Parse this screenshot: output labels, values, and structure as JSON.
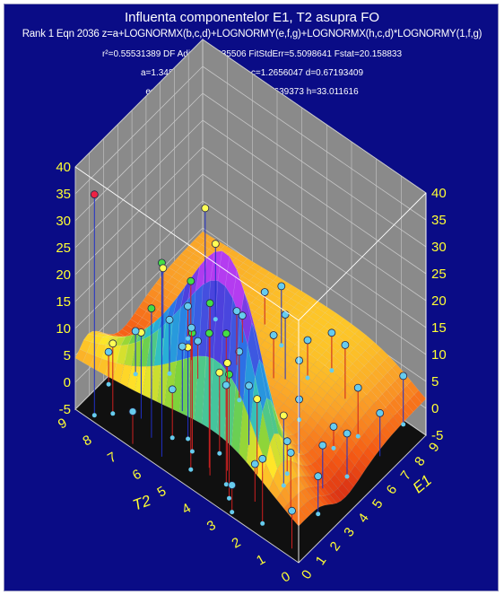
{
  "header": {
    "title": "Influenta componentelor E1, T2 asupra FO",
    "equation": "Rank 1  Eqn 2036  z=a+LOGNORMX(b,c,d)+LOGNORMY(e,f,g)+LOGNORMX(h,c,d)*LOGNORMY(1,f,g)",
    "stats_line1": "r²=0.55531389  DF Adj r²=0.5235506  FitStdErr=5.5098641  Fstat=20.158833",
    "stats_line2": "a=1.3483147 b=4.8975951 c=1.2656047 d=0.67193409",
    "stats_line3": "e=-3.304707 f=3.896985 g=0.29639373 h=33.011616"
  },
  "chart_data": {
    "type": "surface3d",
    "title": "Influenta componentelor E1, T2 asupra FO",
    "xlabel": "T2",
    "ylabel": "E1",
    "z_ticks_left": [
      "40",
      "35",
      "30",
      "25",
      "20",
      "15",
      "10",
      "5",
      "0",
      "-5"
    ],
    "z_ticks_right": [
      "40",
      "35",
      "30",
      "25",
      "20",
      "15",
      "10",
      "5",
      "0",
      "-5"
    ],
    "t2_ticks": [
      "9",
      "8",
      "7",
      "6",
      "5",
      "4",
      "3",
      "2",
      "1",
      "0"
    ],
    "e1_ticks": [
      "0",
      "1",
      "2",
      "3",
      "4",
      "5",
      "6",
      "7",
      "8",
      "9"
    ],
    "zlim": [
      -5,
      40
    ],
    "grid": true,
    "surface_model": {
      "a": 1.3483147,
      "b": 4.8975951,
      "c": 1.2656047,
      "d": 0.67193409,
      "e": -3.304707,
      "f": 3.896985,
      "g": 0.29639373,
      "h": 33.011616
    },
    "data_points": [
      {
        "e1": 0.3,
        "t2": 8.4,
        "z": 36
      },
      {
        "e1": 0.5,
        "t2": 5.8,
        "z": 31
      },
      {
        "e1": 0.8,
        "t2": 4.8,
        "z": 30
      },
      {
        "e1": 1.1,
        "t2": 4.2,
        "z": 27
      },
      {
        "e1": 1.2,
        "t2": 3.6,
        "z": 23
      },
      {
        "e1": 1.4,
        "t2": 4.4,
        "z": 20
      },
      {
        "e1": 1.6,
        "t2": 5.2,
        "z": 17
      },
      {
        "e1": 1.0,
        "t2": 6.5,
        "z": 19
      },
      {
        "e1": 0.7,
        "t2": 3.2,
        "z": 18
      },
      {
        "e1": 1.8,
        "t2": 3.9,
        "z": 15
      },
      {
        "e1": 2.0,
        "t2": 5.6,
        "z": 12
      },
      {
        "e1": 1.5,
        "t2": 7.2,
        "z": 11
      },
      {
        "e1": 2.3,
        "t2": 4.5,
        "z": 10
      },
      {
        "e1": 2.5,
        "t2": 3.1,
        "z": 9
      },
      {
        "e1": 0.9,
        "t2": 8.0,
        "z": 8
      },
      {
        "e1": 3.0,
        "t2": 6.4,
        "z": 7
      },
      {
        "e1": 2.8,
        "t2": 2.2,
        "z": 8
      },
      {
        "e1": 1.9,
        "t2": 1.4,
        "z": 6
      },
      {
        "e1": 0.6,
        "t2": 1.8,
        "z": 7
      },
      {
        "e1": 3.5,
        "t2": 4.0,
        "z": 6
      },
      {
        "e1": 4.2,
        "t2": 7.6,
        "z": 5
      },
      {
        "e1": 4.6,
        "t2": 2.6,
        "z": 5
      },
      {
        "e1": 5.1,
        "t2": 5.3,
        "z": 4
      },
      {
        "e1": 5.5,
        "t2": 8.6,
        "z": 8
      },
      {
        "e1": 6.0,
        "t2": 3.4,
        "z": 6
      },
      {
        "e1": 6.5,
        "t2": 6.2,
        "z": 5
      },
      {
        "e1": 7.0,
        "t2": 1.6,
        "z": 4
      },
      {
        "e1": 7.3,
        "t2": 4.7,
        "z": 7
      },
      {
        "e1": 7.8,
        "t2": 7.8,
        "z": 9
      },
      {
        "e1": 8.2,
        "t2": 2.8,
        "z": 5
      },
      {
        "e1": 8.6,
        "t2": 5.6,
        "z": 6
      },
      {
        "e1": 9.0,
        "t2": 8.9,
        "z": 9
      },
      {
        "e1": 8.8,
        "t2": 0.8,
        "z": 4
      },
      {
        "e1": 6.8,
        "t2": 0.6,
        "z": 3
      },
      {
        "e1": 5.0,
        "t2": 0.9,
        "z": 3
      },
      {
        "e1": 3.8,
        "t2": 1.2,
        "z": 3
      },
      {
        "e1": 2.6,
        "t2": 0.7,
        "z": 2
      },
      {
        "e1": 0.4,
        "t2": 0.5,
        "z": 2
      },
      {
        "e1": 0.2,
        "t2": 2.8,
        "z": 0
      },
      {
        "e1": 0.2,
        "t2": 6.8,
        "z": 1
      },
      {
        "e1": 3.2,
        "t2": 8.4,
        "z": 3
      },
      {
        "e1": 4.8,
        "t2": 6.8,
        "z": 2
      },
      {
        "e1": 6.2,
        "t2": 8.0,
        "z": 1
      },
      {
        "e1": 7.6,
        "t2": 6.6,
        "z": 0
      },
      {
        "e1": 9.0,
        "t2": 3.8,
        "z": 2
      },
      {
        "e1": 9.0,
        "t2": 6.5,
        "z": 1
      },
      {
        "e1": 5.8,
        "t2": 1.9,
        "z": -1
      },
      {
        "e1": 4.0,
        "t2": 5.2,
        "z": 1
      },
      {
        "e1": 2.0,
        "t2": 8.8,
        "z": 1
      },
      {
        "e1": 1.3,
        "t2": 2.5,
        "z": 2
      },
      {
        "e1": 3.4,
        "t2": 2.4,
        "z": 1
      },
      {
        "e1": 7.0,
        "t2": 5.0,
        "z": 3
      },
      {
        "e1": 8.0,
        "t2": 4.2,
        "z": 2
      },
      {
        "e1": 5.4,
        "t2": 7.4,
        "z": 1
      },
      {
        "e1": 1.6,
        "t2": 6.0,
        "z": 4
      }
    ]
  }
}
